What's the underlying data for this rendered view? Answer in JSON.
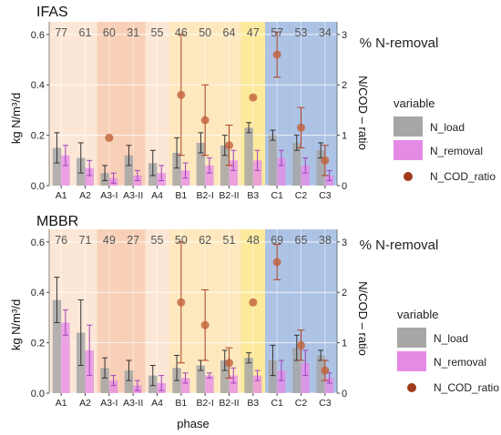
{
  "figure": {
    "legend_title": "variable",
    "legend_items": [
      "N_load",
      "N_removal",
      "N_COD_ratio"
    ],
    "xlabel": "phase",
    "ylabel_left": "kg N/m³/d",
    "ylabel_right": "N/COD – ratio",
    "removal_label": "% N-removal"
  },
  "colors": {
    "n_load": "#a6a6a6",
    "n_removal": "#e58ae5",
    "n_cod": "#c0603a",
    "bg_A": "#fbe3cf",
    "bg_A3": "#f7c8aa",
    "bg_B": "#fde4b4",
    "bg_B3": "#fbe58a",
    "bg_C": "#9fb9e0"
  },
  "chart_data": [
    {
      "type": "bar",
      "title": "IFAS",
      "categories": [
        "A1",
        "A2",
        "A3-I",
        "A3-II",
        "A4",
        "B1",
        "B2-I",
        "B2-II",
        "B3",
        "C1",
        "C2",
        "C3"
      ],
      "removal_percent": [
        77,
        61,
        60,
        31,
        55,
        46,
        50,
        64,
        47,
        57,
        53,
        34
      ],
      "ylim_left": [
        0,
        0.65
      ],
      "ylim_right": [
        0,
        3.25
      ],
      "yticks_left": [
        0.0,
        0.2,
        0.4,
        0.6
      ],
      "yticks_right": [
        0,
        1,
        2,
        3
      ],
      "series": [
        {
          "name": "N_load",
          "values": [
            0.15,
            0.11,
            0.05,
            0.12,
            0.09,
            0.13,
            0.17,
            0.16,
            0.23,
            0.2,
            0.17,
            0.14
          ],
          "err": [
            0.06,
            0.06,
            0.03,
            0.04,
            0.05,
            0.06,
            0.04,
            0.04,
            0.02,
            0.02,
            0.03,
            0.03
          ]
        },
        {
          "name": "N_removal",
          "values": [
            0.12,
            0.07,
            0.03,
            0.04,
            0.05,
            0.06,
            0.08,
            0.1,
            0.1,
            0.11,
            0.08,
            0.04
          ],
          "err": [
            0.04,
            0.03,
            0.02,
            0.02,
            0.03,
            0.03,
            0.03,
            0.04,
            0.04,
            0.03,
            0.03,
            0.02
          ]
        },
        {
          "name": "N_COD_ratio",
          "values": [
            null,
            null,
            0.95,
            null,
            null,
            1.8,
            1.3,
            0.8,
            1.75,
            2.6,
            1.15,
            0.5
          ],
          "err": [
            null,
            null,
            0,
            null,
            null,
            1.2,
            0.7,
            0.4,
            0,
            0.45,
            0.4,
            0.3
          ]
        }
      ]
    },
    {
      "type": "bar",
      "title": "MBBR",
      "categories": [
        "A1",
        "A2",
        "A3-I",
        "A3-II",
        "A4",
        "B1",
        "B2-I",
        "B2-II",
        "B3",
        "C1",
        "C2",
        "C3"
      ],
      "removal_percent": [
        76,
        71,
        49,
        27,
        55,
        50,
        62,
        51,
        48,
        69,
        65,
        38
      ],
      "ylim_left": [
        0,
        0.65
      ],
      "ylim_right": [
        0,
        3.25
      ],
      "yticks_left": [
        0.0,
        0.2,
        0.4,
        0.6
      ],
      "yticks_right": [
        0,
        1,
        2,
        3
      ],
      "series": [
        {
          "name": "N_load",
          "values": [
            0.37,
            0.24,
            0.1,
            0.09,
            0.07,
            0.1,
            0.11,
            0.13,
            0.14,
            0.13,
            0.18,
            0.15
          ],
          "err": [
            0.09,
            0.13,
            0.04,
            0.04,
            0.04,
            0.05,
            0.02,
            0.04,
            0.02,
            0.06,
            0.05,
            0.02
          ]
        },
        {
          "name": "N_removal",
          "values": [
            0.28,
            0.17,
            0.05,
            0.03,
            0.04,
            0.06,
            0.07,
            0.07,
            0.07,
            0.09,
            0.12,
            0.06
          ],
          "err": [
            0.05,
            0.1,
            0.02,
            0.02,
            0.03,
            0.02,
            0.01,
            0.03,
            0.02,
            0.04,
            0.05,
            0.02
          ]
        },
        {
          "name": "N_COD_ratio",
          "values": [
            null,
            null,
            null,
            null,
            null,
            1.8,
            1.35,
            0.6,
            1.8,
            2.6,
            0.95,
            0.45
          ],
          "err": [
            null,
            null,
            null,
            null,
            null,
            1.2,
            0.7,
            0.3,
            0,
            0.35,
            0.3,
            0.2
          ]
        }
      ]
    }
  ]
}
